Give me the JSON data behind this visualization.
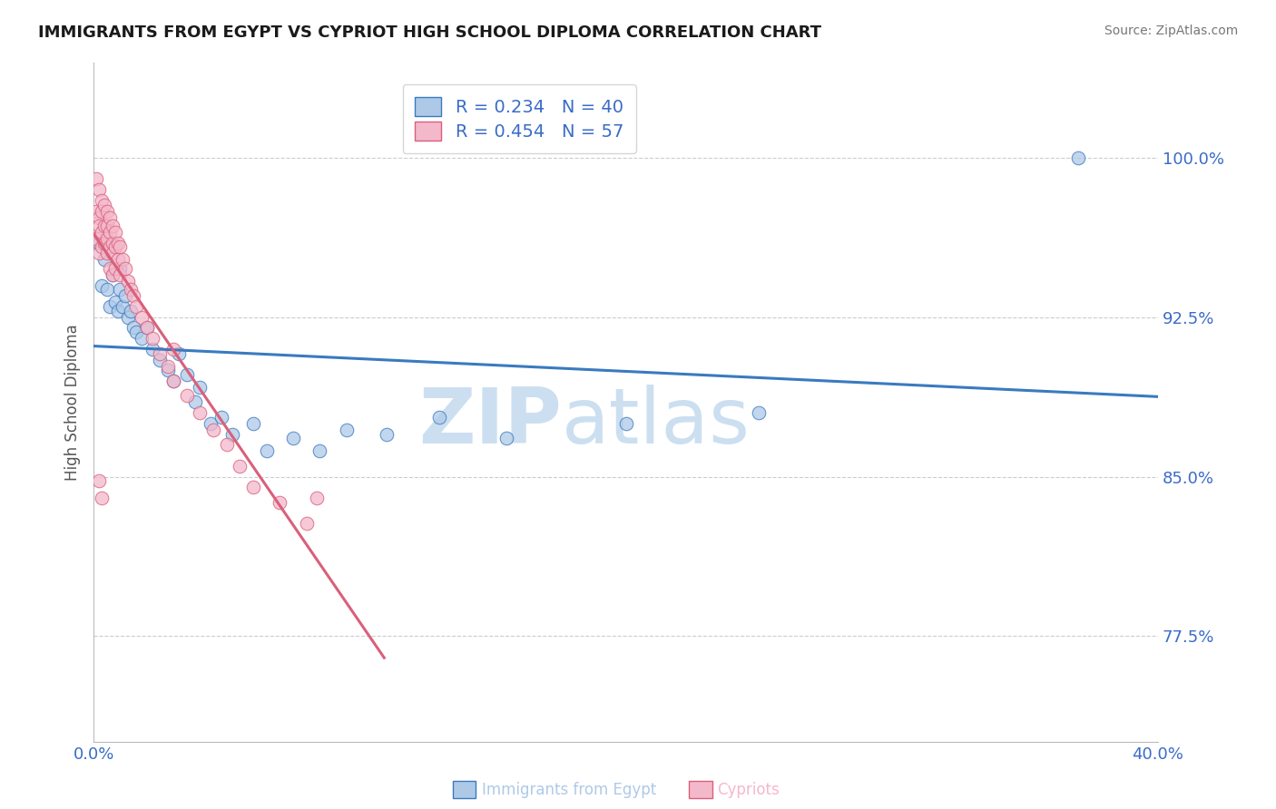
{
  "title": "IMMIGRANTS FROM EGYPT VS CYPRIOT HIGH SCHOOL DIPLOMA CORRELATION CHART",
  "source": "Source: ZipAtlas.com",
  "ylabel": "High School Diploma",
  "legend_entry1_label": "R = 0.234   N = 40",
  "legend_entry2_label": "R = 0.454   N = 57",
  "legend_label1": "Immigrants from Egypt",
  "legend_label2": "Cypriots",
  "blue_color": "#aec9e8",
  "pink_color": "#f4b8cb",
  "line_blue": "#3a7abf",
  "line_pink": "#d9607a",
  "title_color": "#1a1a1a",
  "axis_color": "#3a6cc7",
  "xmin": 0.0,
  "xmax": 0.4,
  "ymin": 0.725,
  "ymax": 1.045,
  "ytick_values": [
    0.775,
    0.85,
    0.925,
    1.0
  ],
  "ytick_labels": [
    "77.5%",
    "85.0%",
    "92.5%",
    "100.0%"
  ],
  "xtick_values": [
    0.0,
    0.4
  ],
  "xtick_labels": [
    "0.0%",
    "40.0%"
  ],
  "background_color": "#ffffff",
  "grid_color": "#cccccc",
  "watermark_zip": "ZIP",
  "watermark_atlas": "atlas",
  "watermark_color": "#ccdff0",
  "blue_scatter_x": [
    0.002,
    0.003,
    0.004,
    0.005,
    0.006,
    0.007,
    0.008,
    0.009,
    0.01,
    0.01,
    0.011,
    0.012,
    0.013,
    0.014,
    0.015,
    0.016,
    0.018,
    0.02,
    0.022,
    0.025,
    0.028,
    0.03,
    0.032,
    0.035,
    0.038,
    0.04,
    0.044,
    0.048,
    0.052,
    0.06,
    0.065,
    0.075,
    0.085,
    0.095,
    0.11,
    0.13,
    0.155,
    0.2,
    0.25,
    0.37
  ],
  "blue_scatter_y": [
    0.96,
    0.94,
    0.952,
    0.938,
    0.93,
    0.945,
    0.932,
    0.928,
    0.938,
    0.948,
    0.93,
    0.935,
    0.925,
    0.928,
    0.92,
    0.918,
    0.915,
    0.92,
    0.91,
    0.905,
    0.9,
    0.895,
    0.908,
    0.898,
    0.885,
    0.892,
    0.875,
    0.878,
    0.87,
    0.875,
    0.862,
    0.868,
    0.862,
    0.872,
    0.87,
    0.878,
    0.868,
    0.875,
    0.88,
    1.0
  ],
  "pink_scatter_x": [
    0.001,
    0.001,
    0.001,
    0.002,
    0.002,
    0.002,
    0.002,
    0.003,
    0.003,
    0.003,
    0.003,
    0.004,
    0.004,
    0.004,
    0.005,
    0.005,
    0.005,
    0.005,
    0.006,
    0.006,
    0.006,
    0.006,
    0.007,
    0.007,
    0.007,
    0.007,
    0.008,
    0.008,
    0.008,
    0.009,
    0.009,
    0.01,
    0.01,
    0.011,
    0.012,
    0.013,
    0.014,
    0.015,
    0.016,
    0.018,
    0.02,
    0.022,
    0.025,
    0.028,
    0.03,
    0.035,
    0.04,
    0.045,
    0.05,
    0.055,
    0.06,
    0.07,
    0.08,
    0.03,
    0.002,
    0.003,
    0.084
  ],
  "pink_scatter_y": [
    0.99,
    0.975,
    0.962,
    0.985,
    0.972,
    0.968,
    0.955,
    0.98,
    0.975,
    0.965,
    0.958,
    0.978,
    0.968,
    0.96,
    0.975,
    0.968,
    0.962,
    0.955,
    0.972,
    0.965,
    0.958,
    0.948,
    0.968,
    0.96,
    0.955,
    0.945,
    0.965,
    0.958,
    0.948,
    0.96,
    0.952,
    0.958,
    0.945,
    0.952,
    0.948,
    0.942,
    0.938,
    0.935,
    0.93,
    0.925,
    0.92,
    0.915,
    0.908,
    0.902,
    0.895,
    0.888,
    0.88,
    0.872,
    0.865,
    0.855,
    0.845,
    0.838,
    0.828,
    0.91,
    0.848,
    0.84,
    0.84
  ]
}
